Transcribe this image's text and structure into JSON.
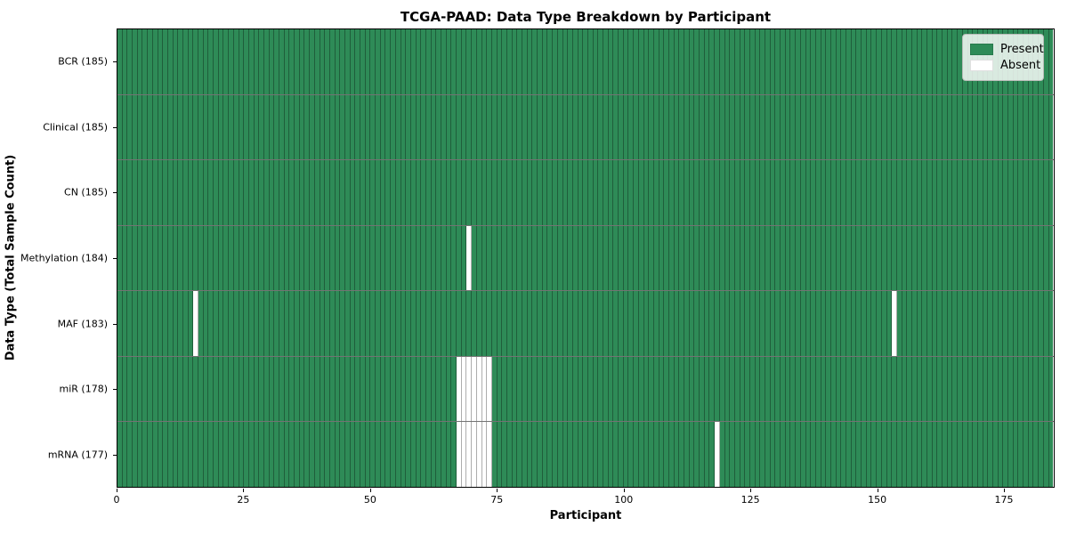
{
  "chart_data": {
    "type": "heatmap",
    "title": "TCGA-PAAD: Data Type Breakdown by Participant",
    "xlabel": "Participant",
    "ylabel": "Data Type (Total Sample Count)",
    "n_participants": 185,
    "xlim": [
      0,
      185
    ],
    "x_ticks": [
      0,
      25,
      50,
      75,
      100,
      125,
      150,
      175
    ],
    "grid": false,
    "legend_position": "upper right",
    "colors": {
      "present": "#2e8b57",
      "absent": "#ffffff",
      "cell_edge": "rgba(0,0,0,0.32)",
      "row_divider": "rgba(0,0,0,0.55)"
    },
    "legend": [
      {
        "label": "Present",
        "color": "#2e8b57"
      },
      {
        "label": "Absent",
        "color": "#ffffff"
      }
    ],
    "rows": [
      {
        "label": "BCR (185)",
        "data_type": "BCR",
        "total_samples": 185,
        "absent_participants": []
      },
      {
        "label": "Clinical (185)",
        "data_type": "Clinical",
        "total_samples": 185,
        "absent_participants": []
      },
      {
        "label": "CN (185)",
        "data_type": "CN",
        "total_samples": 185,
        "absent_participants": []
      },
      {
        "label": "Methylation (184)",
        "data_type": "Methylation",
        "total_samples": 184,
        "absent_participants": [
          69
        ]
      },
      {
        "label": "MAF (183)",
        "data_type": "MAF",
        "total_samples": 183,
        "absent_participants": [
          15,
          153
        ]
      },
      {
        "label": "miR (178)",
        "data_type": "miR",
        "total_samples": 178,
        "absent_participants": [
          67,
          68,
          69,
          70,
          71,
          72,
          73
        ]
      },
      {
        "label": "mRNA (177)",
        "data_type": "mRNA",
        "total_samples": 177,
        "absent_participants": [
          67,
          68,
          69,
          70,
          71,
          72,
          73,
          118
        ]
      }
    ]
  }
}
